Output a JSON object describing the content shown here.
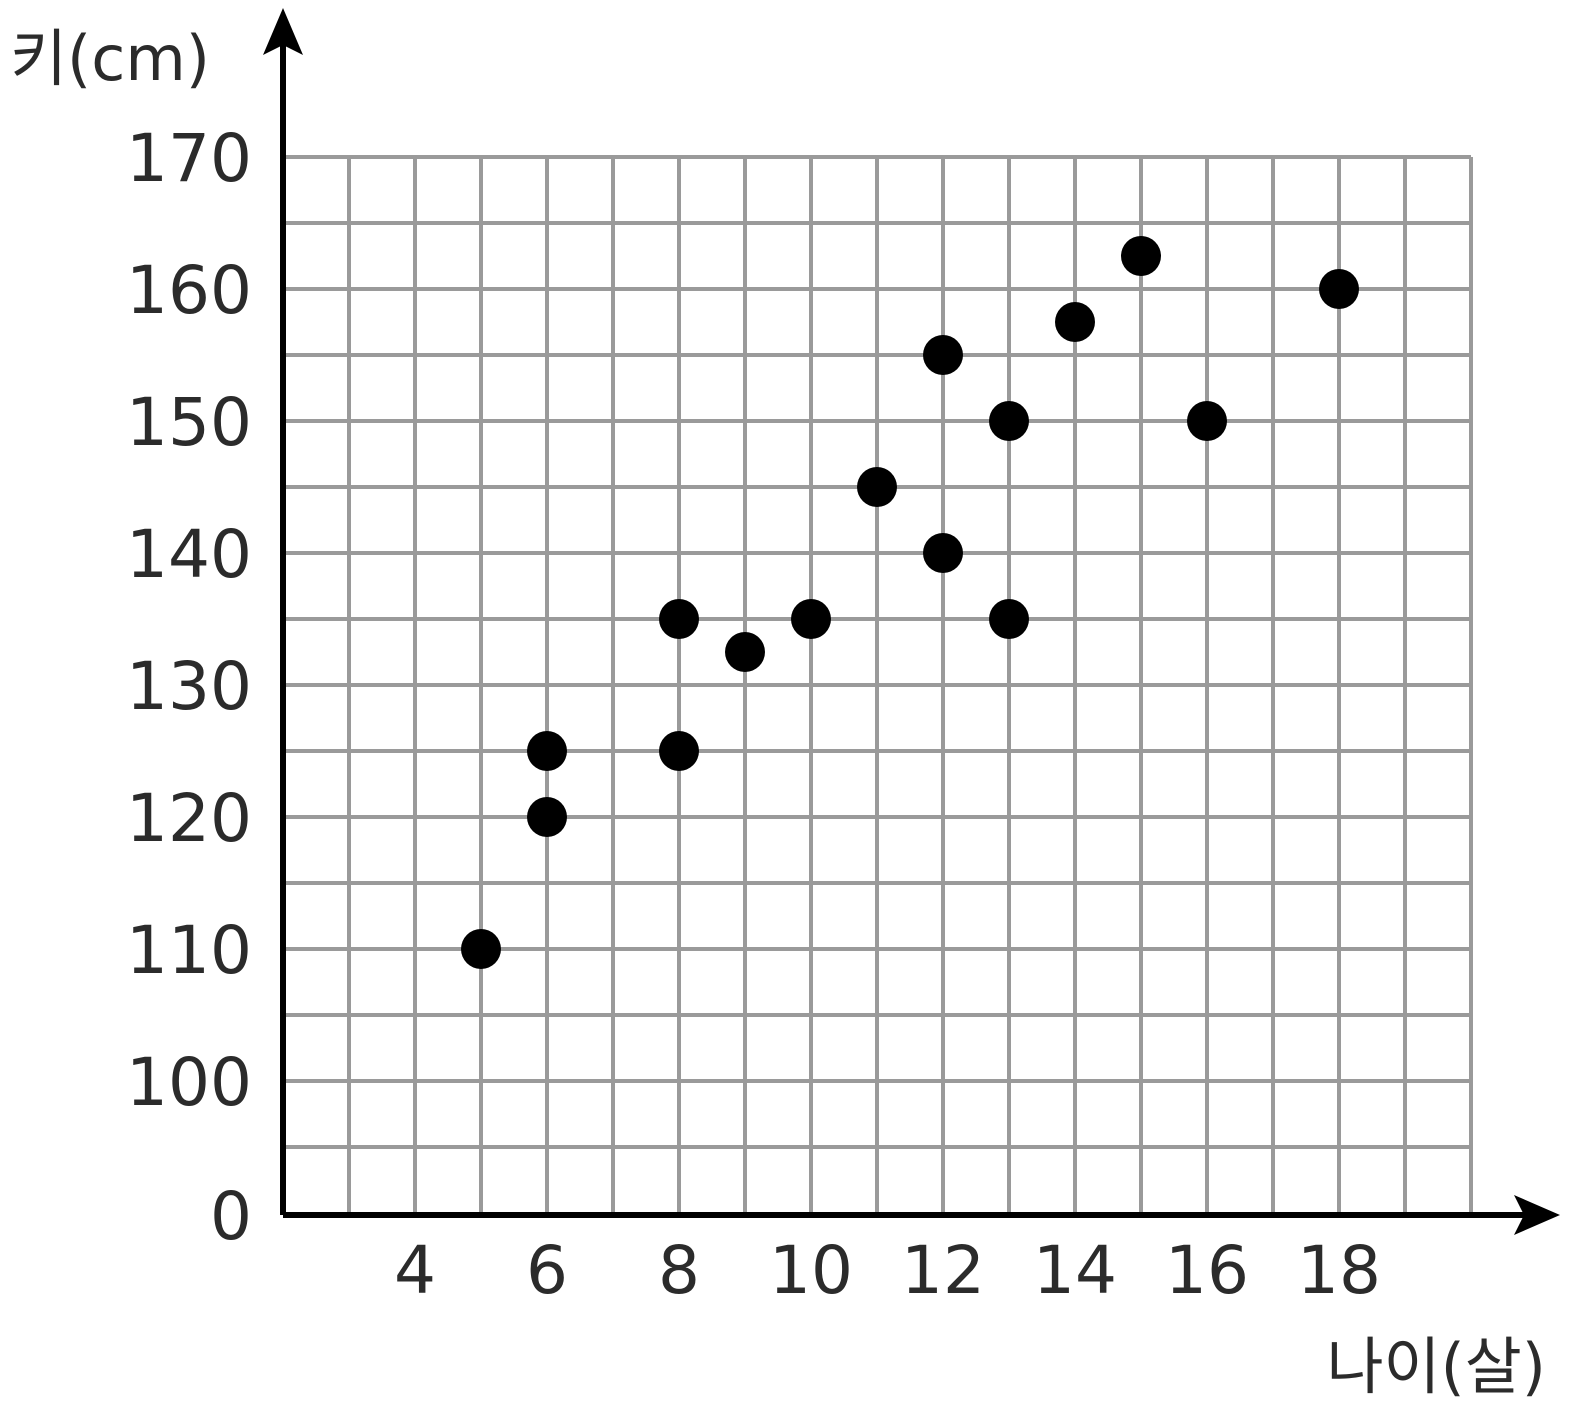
{
  "chart_data": {
    "type": "scatter",
    "title": "",
    "xlabel": "나이(살)",
    "ylabel": "키(cm)",
    "x_ticks": [
      "4",
      "6",
      "8",
      "10",
      "12",
      "14",
      "16",
      "18"
    ],
    "y_ticks": [
      "0",
      "100",
      "110",
      "120",
      "130",
      "140",
      "150",
      "160",
      "170"
    ],
    "y_axis_break": "0 then 100 (axis jumps from 0 to 100)",
    "xlim": [
      2,
      20
    ],
    "ylim": [
      95,
      170
    ],
    "grid": true,
    "points": [
      {
        "x": 5,
        "y": 110
      },
      {
        "x": 6,
        "y": 120
      },
      {
        "x": 6,
        "y": 125
      },
      {
        "x": 8,
        "y": 125
      },
      {
        "x": 8,
        "y": 135
      },
      {
        "x": 9,
        "y": 132.5
      },
      {
        "x": 10,
        "y": 135
      },
      {
        "x": 11,
        "y": 145
      },
      {
        "x": 12,
        "y": 140
      },
      {
        "x": 12,
        "y": 155
      },
      {
        "x": 13,
        "y": 135
      },
      {
        "x": 13,
        "y": 150
      },
      {
        "x": 14,
        "y": 157.5
      },
      {
        "x": 15,
        "y": 162.5
      },
      {
        "x": 16,
        "y": 150
      },
      {
        "x": 18,
        "y": 160
      }
    ],
    "colors": {
      "points": "#000000",
      "grid": "#9a9a9a",
      "axis": "#000000",
      "text": "#2b2b2b"
    }
  }
}
